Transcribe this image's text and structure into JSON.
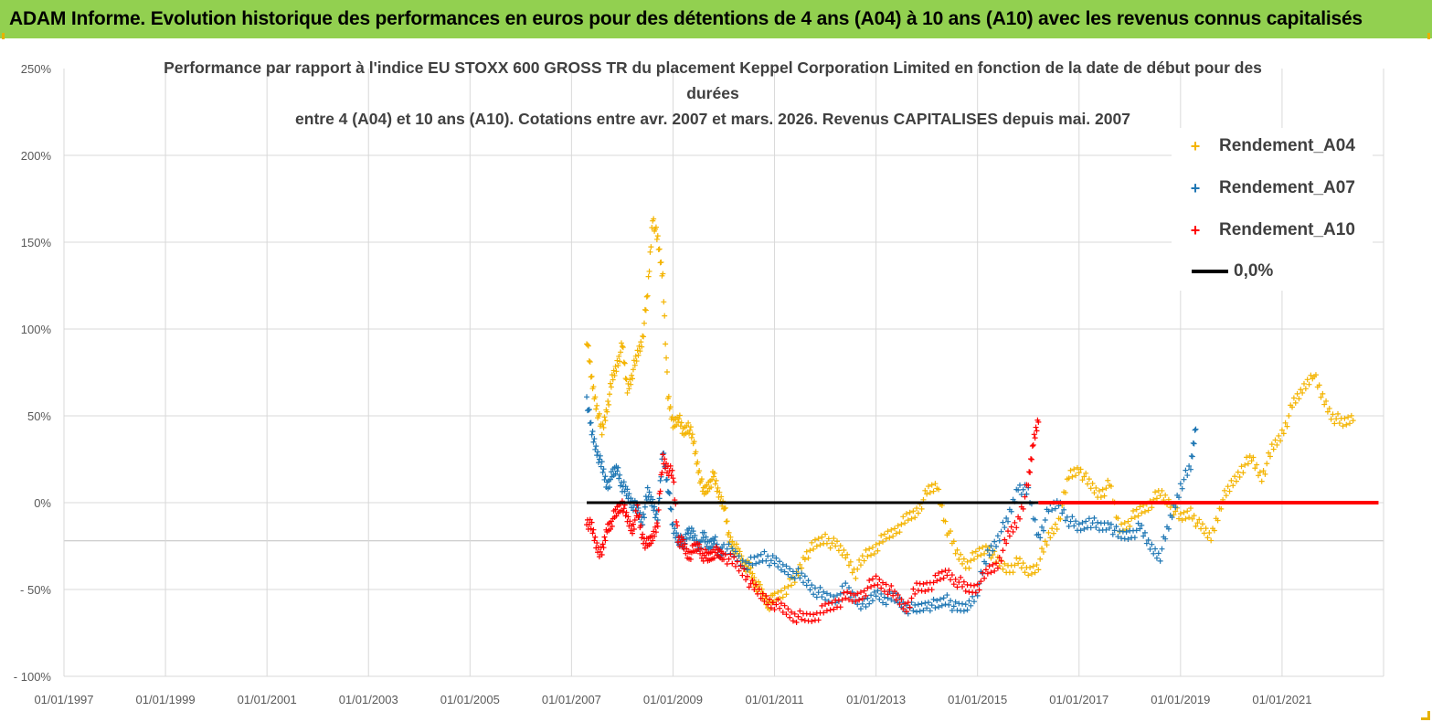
{
  "banner": {
    "title": "ADAM Informe. Evolution historique des performances en euros pour des détentions de 4 ans (A04) à 10 ans (A10) avec les revenus connus capitalisés"
  },
  "chart_data": {
    "type": "scatter",
    "title_lines": [
      "Performance par rapport à l'indice EU STOXX 600 GROSS TR  du placement Keppel Corporation Limited en fonction de la date de début pour des durées",
      "entre 4 (A04) et 10 ans (A10). Cotations entre avr. 2007 et mars. 2026. Revenus CAPITALISES depuis mai. 2007"
    ],
    "x_ticks": [
      "01/01/1997",
      "01/01/1999",
      "01/01/2001",
      "01/01/2003",
      "01/01/2005",
      "01/01/2007",
      "01/01/2009",
      "01/01/2011",
      "01/01/2013",
      "01/01/2015",
      "01/01/2017",
      "01/01/2019",
      "01/01/2021"
    ],
    "y_ticks": [
      "250%",
      "200%",
      "150%",
      "100%",
      "50%",
      "0%",
      "- 50%",
      "- 100%"
    ],
    "xlim": [
      1997.0,
      2023.0
    ],
    "ylim": [
      -100,
      250
    ],
    "grid": true,
    "legend_position": "top-right",
    "series": [
      {
        "name": "Rendement_A04",
        "color": "#f4b400",
        "marker": "+",
        "x": [
          2007.3,
          2007.4,
          2007.5,
          2007.6,
          2007.7,
          2007.8,
          2007.9,
          2008.0,
          2008.1,
          2008.2,
          2008.3,
          2008.4,
          2008.5,
          2008.6,
          2008.7,
          2008.8,
          2008.9,
          2009.0,
          2009.1,
          2009.2,
          2009.3,
          2009.4,
          2009.5,
          2009.6,
          2009.7,
          2009.8,
          2009.9,
          2010.0,
          2010.1,
          2010.2,
          2010.3,
          2010.4,
          2010.5,
          2010.6,
          2010.7,
          2010.8,
          2010.9,
          2011.0,
          2011.2,
          2011.4,
          2011.6,
          2011.8,
          2012.0,
          2012.2,
          2012.4,
          2012.6,
          2012.8,
          2013.0,
          2013.2,
          2013.4,
          2013.6,
          2013.8,
          2014.0,
          2014.2,
          2014.4,
          2014.6,
          2014.8,
          2015.0,
          2015.2,
          2015.4,
          2015.6,
          2015.8,
          2016.0,
          2016.2,
          2016.4,
          2016.6,
          2016.8,
          2017.0,
          2017.2,
          2017.4,
          2017.6,
          2017.8,
          2018.0,
          2018.2,
          2018.4,
          2018.6,
          2018.8,
          2019.0,
          2019.2,
          2019.4,
          2019.6,
          2019.8,
          2020.0,
          2020.2,
          2020.4,
          2020.6,
          2020.8,
          2021.0,
          2021.2,
          2021.4,
          2021.6,
          2021.8,
          2022.0,
          2022.2,
          2022.4
        ],
        "y": [
          95,
          70,
          55,
          40,
          55,
          70,
          80,
          90,
          65,
          75,
          85,
          95,
          120,
          165,
          150,
          130,
          60,
          45,
          50,
          40,
          45,
          35,
          20,
          5,
          10,
          15,
          5,
          0,
          -20,
          -25,
          -30,
          -35,
          -38,
          -45,
          -50,
          -55,
          -58,
          -55,
          -50,
          -45,
          -30,
          -25,
          -20,
          -25,
          -30,
          -40,
          -30,
          -25,
          -20,
          -15,
          -10,
          -5,
          5,
          10,
          -15,
          -30,
          -35,
          -30,
          -25,
          -35,
          -38,
          -35,
          -40,
          -35,
          -20,
          -10,
          15,
          20,
          10,
          5,
          10,
          -15,
          -10,
          -5,
          0,
          5,
          0,
          -10,
          -5,
          -15,
          -20,
          0,
          10,
          20,
          25,
          15,
          30,
          40,
          55,
          65,
          75,
          60,
          50,
          45,
          50
        ],
        "_comment": ""
      },
      {
        "name": "Rendement_A07",
        "color": "#1f77b4",
        "marker": "+",
        "x": [
          2007.3,
          2007.4,
          2007.5,
          2007.6,
          2007.7,
          2007.8,
          2007.9,
          2008.0,
          2008.1,
          2008.2,
          2008.3,
          2008.4,
          2008.5,
          2008.6,
          2008.7,
          2008.8,
          2008.9,
          2009.0,
          2009.1,
          2009.2,
          2009.3,
          2009.4,
          2009.5,
          2009.6,
          2009.7,
          2009.8,
          2009.9,
          2010.0,
          2010.2,
          2010.4,
          2010.6,
          2010.8,
          2011.0,
          2011.2,
          2011.4,
          2011.6,
          2011.8,
          2012.0,
          2012.2,
          2012.4,
          2012.6,
          2012.8,
          2013.0,
          2013.2,
          2013.4,
          2013.6,
          2013.8,
          2014.0,
          2014.2,
          2014.4,
          2014.6,
          2014.8,
          2015.0,
          2015.2,
          2015.4,
          2015.6,
          2015.8,
          2016.0,
          2016.2,
          2016.4,
          2016.6,
          2016.8,
          2017.0,
          2017.2,
          2017.4,
          2017.6,
          2017.8,
          2018.0,
          2018.2,
          2018.4,
          2018.6,
          2018.8,
          2019.0,
          2019.2,
          2019.3
        ],
        "y": [
          60,
          40,
          30,
          20,
          10,
          15,
          20,
          10,
          5,
          0,
          -5,
          -10,
          5,
          0,
          -10,
          30,
          10,
          -15,
          -20,
          -25,
          -15,
          -20,
          -25,
          -20,
          -25,
          -20,
          -30,
          -25,
          -30,
          -35,
          -35,
          -30,
          -35,
          -38,
          -40,
          -45,
          -50,
          -55,
          -55,
          -50,
          -55,
          -60,
          -52,
          -55,
          -55,
          -60,
          -62,
          -58,
          -60,
          -55,
          -62,
          -60,
          -50,
          -30,
          -20,
          -10,
          10,
          5,
          -20,
          -5,
          0,
          -10,
          -15,
          -10,
          -15,
          -12,
          -20,
          -18,
          -15,
          -25,
          -30,
          -10,
          10,
          20,
          45
        ],
        "_comment": ""
      },
      {
        "name": "Rendement_A10",
        "color": "#ff0000",
        "marker": "+",
        "x": [
          2007.3,
          2007.4,
          2007.5,
          2007.6,
          2007.7,
          2007.8,
          2007.9,
          2008.0,
          2008.1,
          2008.2,
          2008.3,
          2008.4,
          2008.5,
          2008.6,
          2008.7,
          2008.8,
          2008.9,
          2009.0,
          2009.1,
          2009.2,
          2009.3,
          2009.4,
          2009.5,
          2009.6,
          2009.7,
          2009.8,
          2009.9,
          2010.0,
          2010.2,
          2010.4,
          2010.6,
          2010.8,
          2011.0,
          2011.2,
          2011.4,
          2011.6,
          2011.8,
          2012.0,
          2012.2,
          2012.4,
          2012.6,
          2012.8,
          2013.0,
          2013.2,
          2013.4,
          2013.6,
          2013.8,
          2014.0,
          2014.2,
          2014.4,
          2014.6,
          2014.8,
          2015.0,
          2015.2,
          2015.4,
          2015.6,
          2015.8,
          2016.0,
          2016.1,
          2016.2
        ],
        "y": [
          -10,
          -15,
          -25,
          -30,
          -15,
          -10,
          -5,
          0,
          -10,
          -15,
          -5,
          -20,
          -25,
          -20,
          -10,
          25,
          20,
          15,
          -20,
          -25,
          -30,
          -28,
          -25,
          -30,
          -32,
          -28,
          -30,
          -30,
          -35,
          -40,
          -50,
          -55,
          -58,
          -62,
          -65,
          -67,
          -65,
          -62,
          -58,
          -55,
          -55,
          -50,
          -45,
          -48,
          -55,
          -60,
          -50,
          -48,
          -45,
          -40,
          -45,
          -50,
          -48,
          -40,
          -35,
          -20,
          -10,
          10,
          35,
          50
        ],
        "_comment": ""
      },
      {
        "name": "0,0%",
        "color": "#000000",
        "marker": "line",
        "x": [
          2007.3,
          2016.2
        ],
        "y": [
          0,
          0
        ]
      },
      {
        "name": "",
        "color": "#ff0000",
        "marker": "flat",
        "x": [
          2016.2,
          2022.9
        ],
        "y": [
          0,
          0
        ]
      }
    ]
  },
  "legend": {
    "items": [
      {
        "label": "Rendement_A04",
        "color": "#f4b400",
        "symbol": "+"
      },
      {
        "label": "Rendement_A07",
        "color": "#1f77b4",
        "symbol": "+"
      },
      {
        "label": "Rendement_A10",
        "color": "#ff0000",
        "symbol": "+"
      },
      {
        "label": "0,0%",
        "color": "#000000",
        "symbol": "line"
      }
    ]
  }
}
